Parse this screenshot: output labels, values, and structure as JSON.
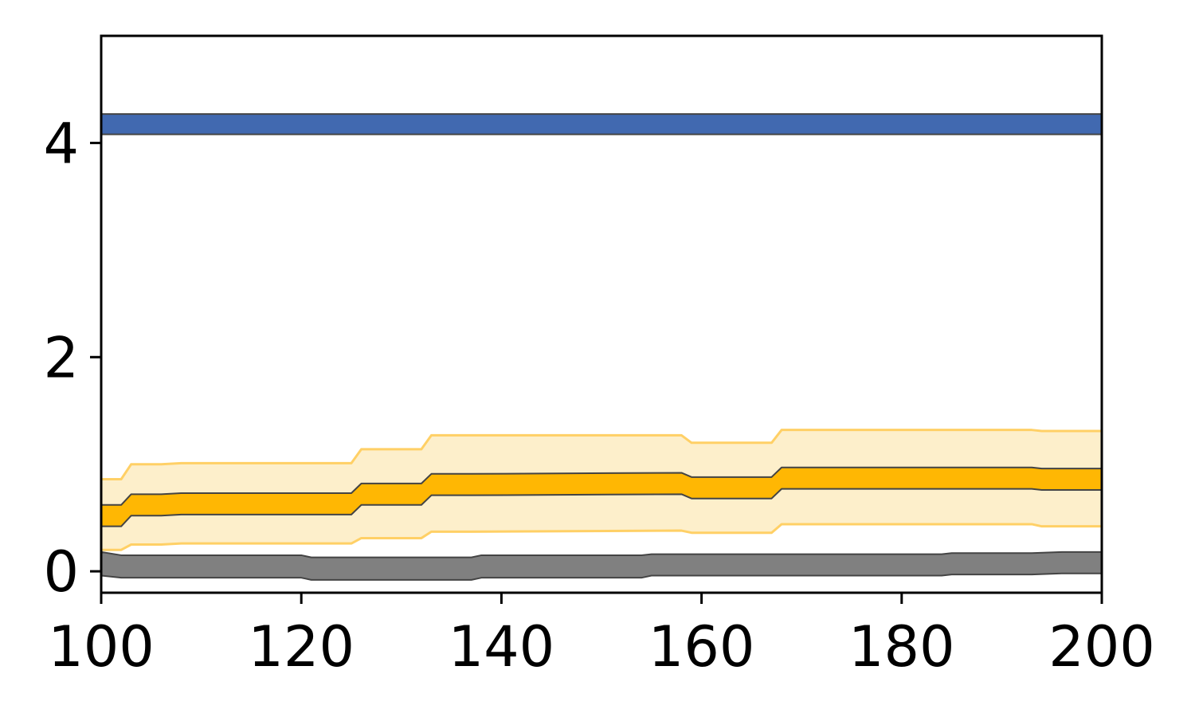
{
  "chart_data": {
    "type": "area",
    "title": "",
    "xlabel": "",
    "ylabel": "",
    "xlim": [
      100,
      200
    ],
    "ylim": [
      -0.2,
      5.0
    ],
    "x_ticks": [
      100,
      120,
      140,
      160,
      180,
      200
    ],
    "y_ticks": [
      0,
      2,
      4
    ],
    "x_tick_labels": [
      "100",
      "120",
      "140",
      "160",
      "180",
      "200"
    ],
    "y_tick_labels": [
      "0",
      "2",
      "4"
    ],
    "grid": false,
    "legend": "none",
    "series": [
      {
        "color": "#4169b0",
        "edge_color": "#444444",
        "x": [
          100,
          200
        ],
        "lower": [
          4.08,
          4.08
        ],
        "upper": [
          4.27,
          4.27
        ]
      },
      {
        "color": "#ffb703",
        "edge_color": "#444444",
        "outer_color": "#fdefcb",
        "outer_edge_color": "#ffd066",
        "x": [
          100,
          102,
          103,
          106,
          108,
          125,
          126,
          132,
          133,
          137,
          158,
          159,
          167,
          168,
          193,
          194,
          200
        ],
        "lower": [
          0.42,
          0.42,
          0.52,
          0.52,
          0.53,
          0.53,
          0.62,
          0.62,
          0.71,
          0.71,
          0.72,
          0.68,
          0.68,
          0.77,
          0.77,
          0.76,
          0.76
        ],
        "upper": [
          0.62,
          0.62,
          0.72,
          0.72,
          0.73,
          0.73,
          0.82,
          0.82,
          0.91,
          0.91,
          0.92,
          0.88,
          0.88,
          0.97,
          0.97,
          0.96,
          0.96
        ],
        "outer_lower": [
          0.2,
          0.2,
          0.25,
          0.25,
          0.26,
          0.26,
          0.31,
          0.31,
          0.37,
          0.37,
          0.38,
          0.36,
          0.36,
          0.44,
          0.44,
          0.42,
          0.42
        ],
        "outer_upper": [
          0.86,
          0.86,
          1.0,
          1.0,
          1.01,
          1.01,
          1.14,
          1.14,
          1.27,
          1.27,
          1.27,
          1.2,
          1.2,
          1.32,
          1.32,
          1.31,
          1.31
        ]
      },
      {
        "color": "#808080",
        "edge_color": "#444444",
        "x": [
          100,
          102,
          120,
          121,
          137,
          138,
          154,
          155,
          184,
          185,
          193,
          196,
          200
        ],
        "lower": [
          -0.04,
          -0.06,
          -0.06,
          -0.08,
          -0.08,
          -0.06,
          -0.06,
          -0.04,
          -0.04,
          -0.03,
          -0.03,
          -0.02,
          -0.02
        ],
        "upper": [
          0.18,
          0.15,
          0.15,
          0.13,
          0.13,
          0.15,
          0.15,
          0.16,
          0.16,
          0.17,
          0.17,
          0.18,
          0.18
        ]
      }
    ]
  }
}
